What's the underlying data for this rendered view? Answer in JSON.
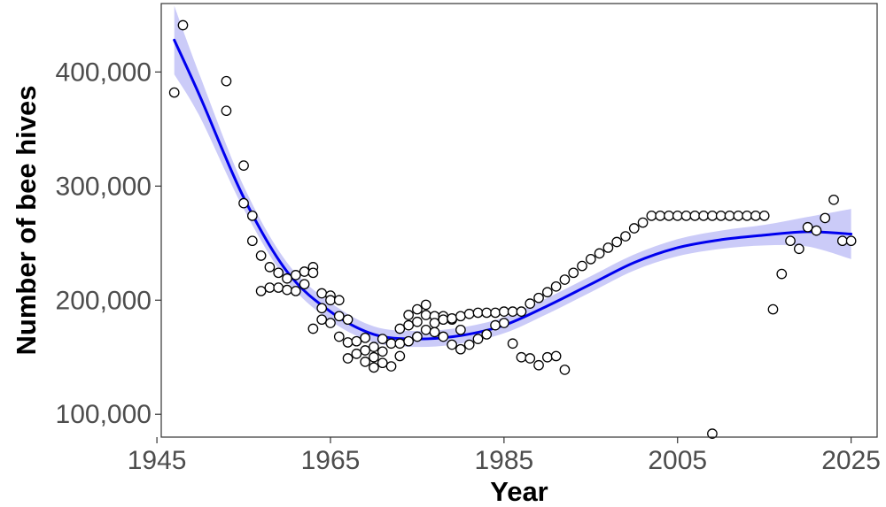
{
  "chart_data": {
    "type": "scatter",
    "title": "",
    "xlabel": "Year",
    "ylabel": "Number of bee hives",
    "xlim": [
      1945.5,
      2028
    ],
    "ylim": [
      80000,
      460000
    ],
    "x_ticks": [
      1945,
      1965,
      1985,
      2005,
      2025
    ],
    "x_tick_labels": [
      "1945",
      "1965",
      "1985",
      "2005",
      "2025"
    ],
    "y_ticks": [
      100000,
      200000,
      300000,
      400000
    ],
    "y_tick_labels": [
      "100,000",
      "200,000",
      "300,000",
      "400,000"
    ],
    "grid": false,
    "legend": "none",
    "colors": {
      "points": "#000000",
      "smooth_line": "#0000ee",
      "confidence_band": "#c5c5f7"
    },
    "series": [
      {
        "kind": "points",
        "points": [
          [
            1947,
            382000
          ],
          [
            1948,
            441000
          ],
          [
            1953,
            392000
          ],
          [
            1953,
            366000
          ],
          [
            1955,
            318000
          ],
          [
            1955,
            285000
          ],
          [
            1956,
            274000
          ],
          [
            1956,
            252000
          ],
          [
            1957,
            239000
          ],
          [
            1957,
            208000
          ],
          [
            1958,
            229000
          ],
          [
            1958,
            211000
          ],
          [
            1959,
            224000
          ],
          [
            1959,
            211000
          ],
          [
            1960,
            219000
          ],
          [
            1960,
            209000
          ],
          [
            1961,
            222000
          ],
          [
            1961,
            208000
          ],
          [
            1962,
            225000
          ],
          [
            1962,
            214000
          ],
          [
            1963,
            229000
          ],
          [
            1963,
            224000
          ],
          [
            1963,
            175000
          ],
          [
            1964,
            206000
          ],
          [
            1964,
            193000
          ],
          [
            1964,
            183000
          ],
          [
            1965,
            204000
          ],
          [
            1965,
            200000
          ],
          [
            1965,
            180000
          ],
          [
            1966,
            200000
          ],
          [
            1966,
            186000
          ],
          [
            1966,
            168000
          ],
          [
            1967,
            183000
          ],
          [
            1967,
            163000
          ],
          [
            1967,
            149000
          ],
          [
            1968,
            164000
          ],
          [
            1968,
            153000
          ],
          [
            1969,
            167000
          ],
          [
            1969,
            156000
          ],
          [
            1969,
            146000
          ],
          [
            1970,
            159000
          ],
          [
            1970,
            150000
          ],
          [
            1970,
            141000
          ],
          [
            1971,
            166000
          ],
          [
            1971,
            155000
          ],
          [
            1971,
            145000
          ],
          [
            1972,
            162000
          ],
          [
            1972,
            142000
          ],
          [
            1973,
            175000
          ],
          [
            1973,
            162000
          ],
          [
            1973,
            151000
          ],
          [
            1974,
            187000
          ],
          [
            1974,
            178000
          ],
          [
            1974,
            164000
          ],
          [
            1975,
            192000
          ],
          [
            1975,
            181000
          ],
          [
            1975,
            168000
          ],
          [
            1976,
            196000
          ],
          [
            1976,
            187000
          ],
          [
            1976,
            174000
          ],
          [
            1977,
            186000
          ],
          [
            1977,
            180000
          ],
          [
            1977,
            172000
          ],
          [
            1978,
            186000
          ],
          [
            1978,
            183000
          ],
          [
            1978,
            168000
          ],
          [
            1979,
            183000
          ],
          [
            1979,
            184000
          ],
          [
            1979,
            161000
          ],
          [
            1980,
            186000
          ],
          [
            1980,
            174000
          ],
          [
            1980,
            157000
          ],
          [
            1981,
            188000
          ],
          [
            1981,
            161000
          ],
          [
            1982,
            189000
          ],
          [
            1982,
            166000
          ],
          [
            1983,
            189000
          ],
          [
            1983,
            170000
          ],
          [
            1984,
            189000
          ],
          [
            1984,
            178000
          ],
          [
            1985,
            190000
          ],
          [
            1985,
            180000
          ],
          [
            1986,
            190000
          ],
          [
            1986,
            162000
          ],
          [
            1987,
            190000
          ],
          [
            1987,
            150000
          ],
          [
            1988,
            197000
          ],
          [
            1988,
            149000
          ],
          [
            1989,
            202000
          ],
          [
            1989,
            143000
          ],
          [
            1990,
            207000
          ],
          [
            1990,
            150000
          ],
          [
            1991,
            212000
          ],
          [
            1991,
            151000
          ],
          [
            1992,
            218000
          ],
          [
            1992,
            139000
          ],
          [
            1993,
            224000
          ],
          [
            1994,
            230000
          ],
          [
            1995,
            236000
          ],
          [
            1996,
            241000
          ],
          [
            1997,
            246000
          ],
          [
            1998,
            251000
          ],
          [
            1999,
            256000
          ],
          [
            2000,
            263000
          ],
          [
            2001,
            268000
          ],
          [
            2002,
            274000
          ],
          [
            2003,
            274000
          ],
          [
            2004,
            274000
          ],
          [
            2005,
            274000
          ],
          [
            2006,
            274000
          ],
          [
            2007,
            274000
          ],
          [
            2008,
            274000
          ],
          [
            2009,
            274000
          ],
          [
            2009,
            83000
          ],
          [
            2010,
            274000
          ],
          [
            2011,
            274000
          ],
          [
            2012,
            274000
          ],
          [
            2013,
            274000
          ],
          [
            2014,
            274000
          ],
          [
            2015,
            274000
          ],
          [
            2016,
            192000
          ],
          [
            2017,
            223000
          ],
          [
            2018,
            252000
          ],
          [
            2019,
            245000
          ],
          [
            2020,
            264000
          ],
          [
            2021,
            261000
          ],
          [
            2022,
            272000
          ],
          [
            2023,
            288000
          ],
          [
            2024,
            252000
          ],
          [
            2025,
            252000
          ]
        ]
      },
      {
        "kind": "smooth",
        "points": [
          [
            1947,
            428000
          ],
          [
            1950,
            378000
          ],
          [
            1955,
            290000
          ],
          [
            1960,
            225000
          ],
          [
            1965,
            190000
          ],
          [
            1970,
            170000
          ],
          [
            1975,
            166000
          ],
          [
            1980,
            169000
          ],
          [
            1985,
            178000
          ],
          [
            1990,
            195000
          ],
          [
            1995,
            214000
          ],
          [
            2000,
            233000
          ],
          [
            2005,
            246000
          ],
          [
            2010,
            253000
          ],
          [
            2015,
            257000
          ],
          [
            2020,
            260000
          ],
          [
            2025,
            258000
          ]
        ],
        "band_halfwidth": [
          [
            1947,
            30000
          ],
          [
            1950,
            18000
          ],
          [
            1955,
            10000
          ],
          [
            1960,
            8000
          ],
          [
            1965,
            8000
          ],
          [
            1970,
            7000
          ],
          [
            1975,
            7000
          ],
          [
            1980,
            7000
          ],
          [
            1985,
            7000
          ],
          [
            1990,
            7000
          ],
          [
            1995,
            7000
          ],
          [
            2000,
            7000
          ],
          [
            2005,
            7500
          ],
          [
            2010,
            8000
          ],
          [
            2015,
            9000
          ],
          [
            2020,
            13000
          ],
          [
            2025,
            22000
          ]
        ]
      }
    ]
  }
}
